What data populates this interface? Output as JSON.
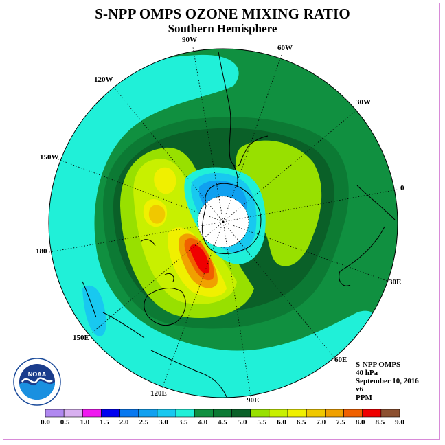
{
  "title": "S-NPP OMPS OZONE MIXING RATIO",
  "subtitle": "Southern Hemisphere",
  "longitude_labels": [
    {
      "name": "lon-90w",
      "text": "90W"
    },
    {
      "name": "lon-60w",
      "text": "60W"
    },
    {
      "name": "lon-30w",
      "text": "30W"
    },
    {
      "name": "lon-0",
      "text": "0"
    },
    {
      "name": "lon-30e",
      "text": "30E"
    },
    {
      "name": "lon-60e",
      "text": "60E"
    },
    {
      "name": "lon-90e",
      "text": "90E"
    },
    {
      "name": "lon-120e",
      "text": "120E"
    },
    {
      "name": "lon-150e",
      "text": "150E"
    },
    {
      "name": "lon-180",
      "text": "180"
    },
    {
      "name": "lon-150w",
      "text": "150W"
    },
    {
      "name": "lon-120w",
      "text": "120W"
    }
  ],
  "info": {
    "instrument": "S-NPP OMPS",
    "level": "40 hPa",
    "date": "September 10, 2016",
    "version": "v6",
    "units": "PPM"
  },
  "logo_text": "NOAA",
  "colorbar": {
    "ticks": [
      "0.0",
      "0.5",
      "1.0",
      "1.5",
      "2.0",
      "2.5",
      "3.0",
      "3.5",
      "4.0",
      "4.5",
      "5.0",
      "5.5",
      "6.0",
      "6.5",
      "7.0",
      "7.5",
      "8.0",
      "8.5",
      "9.0"
    ],
    "colors": [
      "#b088f0",
      "#d8b0f0",
      "#f018f0",
      "#0000f0",
      "#0878f0",
      "#10a0f0",
      "#18c8f0",
      "#20f0d8",
      "#109040",
      "#0c7a34",
      "#0a6028",
      "#98e000",
      "#c8f000",
      "#f0f000",
      "#f0c800",
      "#f0a000",
      "#f06000",
      "#f00000",
      "#8c5030"
    ]
  },
  "map_colors": {
    "polar_night": "#ffffff",
    "background": "#109040"
  }
}
